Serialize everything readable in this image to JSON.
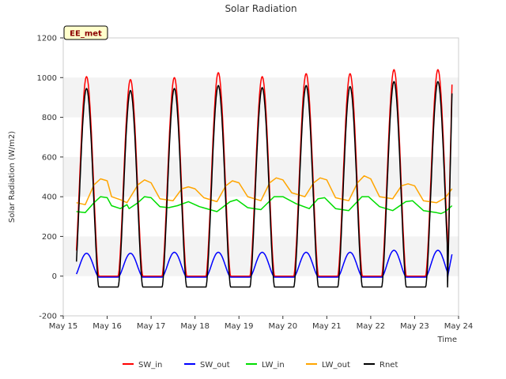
{
  "chart_data": {
    "type": "line",
    "title": "Solar Radiation",
    "xlabel": "Time",
    "ylabel": "Solar Radiation (W/m2)",
    "badge": "EE_met",
    "ylim": [
      -200,
      1200
    ],
    "xlim": [
      15,
      24
    ],
    "yticks": [
      -200,
      0,
      200,
      400,
      600,
      800,
      1000,
      1200
    ],
    "xticks": [
      {
        "value": 15,
        "label": "May 15"
      },
      {
        "value": 16,
        "label": "May 16"
      },
      {
        "value": 17,
        "label": "May 17"
      },
      {
        "value": 18,
        "label": "May 18"
      },
      {
        "value": 19,
        "label": "May 19"
      },
      {
        "value": 20,
        "label": "May 20"
      },
      {
        "value": 21,
        "label": "May 21"
      },
      {
        "value": 22,
        "label": "May 22"
      },
      {
        "value": 23,
        "label": "May 23"
      },
      {
        "value": 24,
        "label": "May 24"
      }
    ],
    "grid": "horizontal bands",
    "legend_position": "bottom",
    "data_start": 15.3,
    "data_end": 23.85,
    "day_peak_x": [
      15.83,
      16.83,
      17.83,
      18.84,
      19.83,
      20.84,
      21.84,
      22.83
    ],
    "series": [
      {
        "name": "SW_in",
        "color": "#ff0000",
        "daily": [
          [
            16.4,
            1005
          ],
          [
            17.4,
            990
          ],
          [
            18.4,
            1000
          ],
          [
            19.4,
            1025
          ],
          [
            20.4,
            1005
          ],
          [
            21.4,
            1020
          ],
          [
            22.4,
            1020
          ],
          [
            23.4,
            1040
          ]
        ],
        "night": 0,
        "final": 965
      },
      {
        "name": "SW_out",
        "color": "#0000ff",
        "daily": [
          [
            16.4,
            115
          ],
          [
            17.4,
            115
          ],
          [
            18.4,
            120
          ],
          [
            19.4,
            120
          ],
          [
            20.4,
            120
          ],
          [
            21.4,
            120
          ],
          [
            22.4,
            120
          ],
          [
            23.4,
            130
          ]
        ],
        "night": -5,
        "final": 110
      },
      {
        "name": "LW_in",
        "color": "#00dd00",
        "points": [
          [
            15.3,
            325
          ],
          [
            15.5,
            320
          ],
          [
            15.7,
            370
          ],
          [
            15.85,
            400
          ],
          [
            16.0,
            395
          ],
          [
            16.1,
            355
          ],
          [
            16.3,
            340
          ],
          [
            16.45,
            360
          ],
          [
            16.5,
            340
          ],
          [
            16.7,
            370
          ],
          [
            16.85,
            400
          ],
          [
            17.0,
            395
          ],
          [
            17.2,
            350
          ],
          [
            17.4,
            345
          ],
          [
            17.6,
            355
          ],
          [
            17.85,
            375
          ],
          [
            18.1,
            350
          ],
          [
            18.5,
            325
          ],
          [
            18.8,
            375
          ],
          [
            18.95,
            385
          ],
          [
            19.2,
            345
          ],
          [
            19.5,
            335
          ],
          [
            19.8,
            400
          ],
          [
            20.0,
            400
          ],
          [
            20.3,
            365
          ],
          [
            20.6,
            340
          ],
          [
            20.8,
            390
          ],
          [
            20.95,
            395
          ],
          [
            21.2,
            340
          ],
          [
            21.5,
            330
          ],
          [
            21.8,
            400
          ],
          [
            21.95,
            400
          ],
          [
            22.2,
            350
          ],
          [
            22.5,
            330
          ],
          [
            22.8,
            375
          ],
          [
            22.95,
            380
          ],
          [
            23.2,
            330
          ],
          [
            23.5,
            320
          ],
          [
            23.6,
            315
          ],
          [
            23.7,
            325
          ],
          [
            23.85,
            355
          ]
        ]
      },
      {
        "name": "LW_out",
        "color": "#ffa500",
        "points": [
          [
            15.3,
            370
          ],
          [
            15.5,
            360
          ],
          [
            15.7,
            460
          ],
          [
            15.85,
            490
          ],
          [
            16.0,
            480
          ],
          [
            16.1,
            400
          ],
          [
            16.3,
            385
          ],
          [
            16.45,
            370
          ],
          [
            16.7,
            460
          ],
          [
            16.85,
            485
          ],
          [
            17.0,
            470
          ],
          [
            17.2,
            390
          ],
          [
            17.5,
            380
          ],
          [
            17.7,
            440
          ],
          [
            17.85,
            450
          ],
          [
            18.0,
            440
          ],
          [
            18.2,
            395
          ],
          [
            18.5,
            375
          ],
          [
            18.7,
            455
          ],
          [
            18.85,
            480
          ],
          [
            19.0,
            470
          ],
          [
            19.2,
            400
          ],
          [
            19.5,
            380
          ],
          [
            19.7,
            470
          ],
          [
            19.85,
            495
          ],
          [
            20.0,
            485
          ],
          [
            20.2,
            420
          ],
          [
            20.5,
            400
          ],
          [
            20.7,
            470
          ],
          [
            20.85,
            495
          ],
          [
            21.0,
            485
          ],
          [
            21.2,
            395
          ],
          [
            21.5,
            380
          ],
          [
            21.7,
            470
          ],
          [
            21.85,
            505
          ],
          [
            22.0,
            490
          ],
          [
            22.2,
            400
          ],
          [
            22.5,
            390
          ],
          [
            22.7,
            455
          ],
          [
            22.85,
            465
          ],
          [
            23.0,
            455
          ],
          [
            23.2,
            380
          ],
          [
            23.5,
            370
          ],
          [
            23.7,
            395
          ],
          [
            23.85,
            440
          ]
        ]
      },
      {
        "name": "Rnet",
        "color": "#000000",
        "daily": [
          [
            16.4,
            945
          ],
          [
            17.4,
            935
          ],
          [
            18.4,
            945
          ],
          [
            19.4,
            960
          ],
          [
            20.4,
            950
          ],
          [
            21.4,
            960
          ],
          [
            22.4,
            955
          ],
          [
            23.4,
            980
          ]
        ],
        "night": -55,
        "final": 920
      }
    ]
  }
}
